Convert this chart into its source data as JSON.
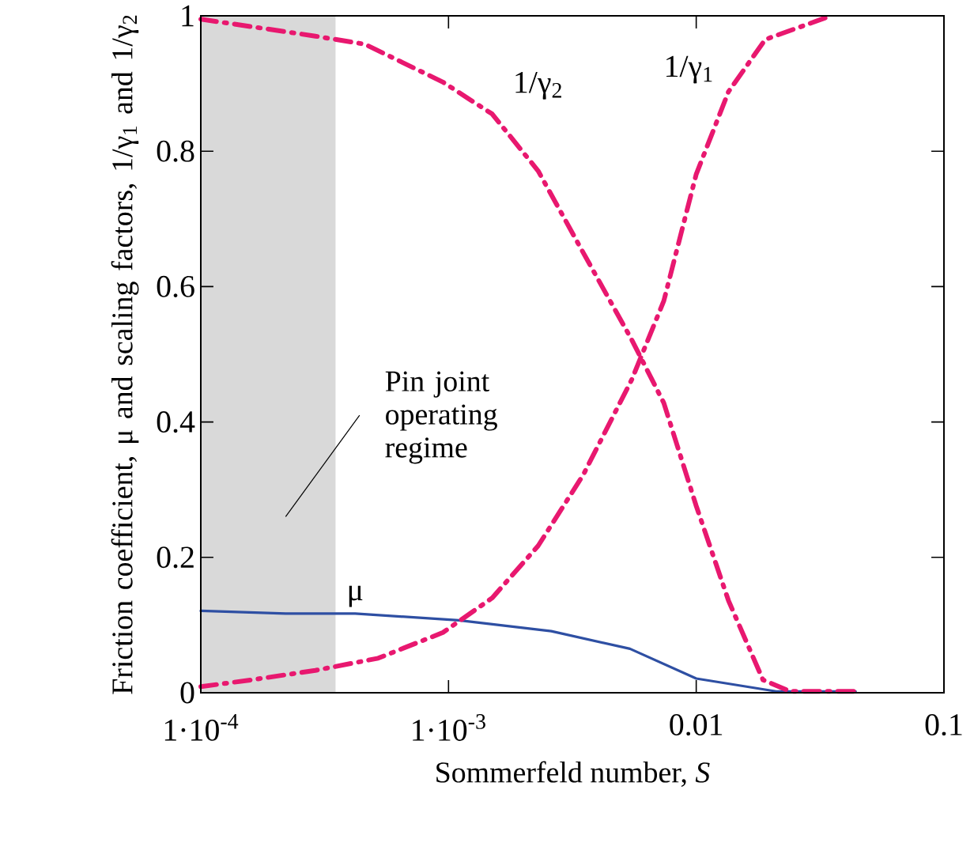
{
  "chart_data": {
    "type": "line",
    "xlabel": "Sommerfeld number, *S*",
    "ylabel": "Friction coefficient, μ  and scaling factors, 1/γ$_{1}$ and 1/γ$_{2}$",
    "log": "x",
    "xlim": [
      0.0001,
      0.1
    ],
    "ylim": [
      0,
      1
    ],
    "xticks": [
      {
        "value": 0.0001,
        "label": "1·10$^{-4}$"
      },
      {
        "value": 0.001,
        "label": "1·10$^{-3}$"
      },
      0.01,
      0.1
    ],
    "yticks": [
      0,
      0.2,
      0.4,
      0.6,
      0.8,
      1
    ],
    "bands": [
      {
        "axis": "x",
        "from": 0.0001,
        "to": 0.00035,
        "label": "Pin joint operating regime",
        "color": "#d9d9d9"
      }
    ],
    "series": [
      {
        "name": "μ",
        "color": "#2e4fa3",
        "line_style": "solid",
        "x": [
          0.0001,
          0.00022,
          0.00042,
          0.0011,
          0.0026,
          0.0054,
          0.01,
          0.021,
          0.044
        ],
        "values": [
          0.121,
          0.117,
          0.117,
          0.107,
          0.091,
          0.065,
          0.021,
          0.002,
          0.002
        ]
      },
      {
        "name": "1/γ$_{2}$",
        "color": "#e8186f",
        "line_style": "dashdot",
        "x": [
          0.0001,
          0.00016,
          0.00029,
          0.00046,
          0.00095,
          0.0015,
          0.0023,
          0.0035,
          0.0055,
          0.0074,
          0.01,
          0.0135,
          0.0186,
          0.024,
          0.044
        ],
        "values": [
          0.995,
          0.984,
          0.97,
          0.958,
          0.902,
          0.855,
          0.771,
          0.65,
          0.521,
          0.428,
          0.276,
          0.136,
          0.019,
          0.002,
          0.002
        ]
      },
      {
        "name": "1/γ$_{1}$",
        "color": "#e8186f",
        "line_style": "dashdot",
        "x": [
          0.0001,
          0.00016,
          0.00029,
          0.00052,
          0.00095,
          0.0015,
          0.0023,
          0.0035,
          0.0055,
          0.0074,
          0.01,
          0.0135,
          0.019,
          0.035
        ],
        "values": [
          0.009,
          0.019,
          0.033,
          0.051,
          0.089,
          0.14,
          0.217,
          0.322,
          0.463,
          0.579,
          0.766,
          0.888,
          0.965,
          1
        ]
      }
    ]
  }
}
